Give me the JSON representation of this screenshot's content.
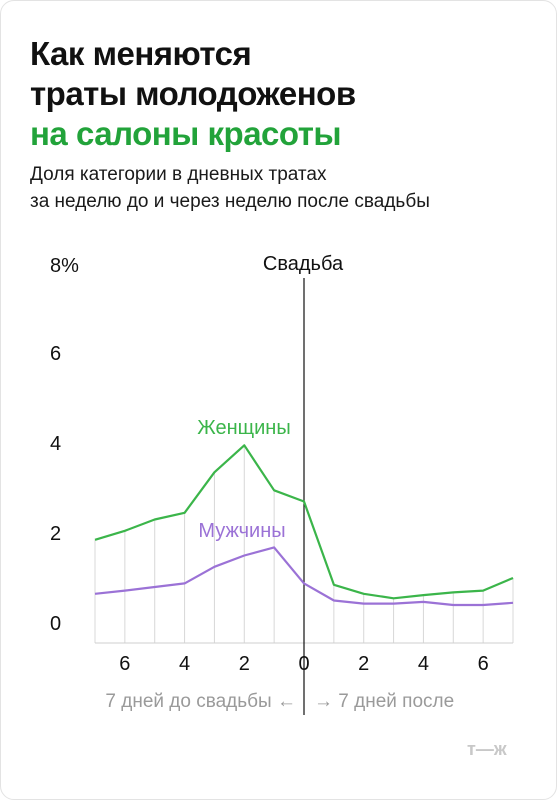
{
  "title": {
    "line1": "Как меняются",
    "line2": "траты молодоженов",
    "line3": "на салоны красоты"
  },
  "subtitle": {
    "line1": "Доля категории в дневных тратах",
    "line2": "за неделю до и через неделю после свадьбы"
  },
  "colors": {
    "women": "#3bb54a",
    "men": "#9b72d6",
    "accent_title": "#22a33a",
    "text": "#111111",
    "muted": "#9a9a9a",
    "grid": "#d8d8d8"
  },
  "chart_data": {
    "type": "line",
    "x": [
      -7,
      -6,
      -5,
      -4,
      -3,
      -2,
      -1,
      0,
      1,
      2,
      3,
      4,
      5,
      6,
      7
    ],
    "series": [
      {
        "name": "Женщины",
        "values": [
          1.85,
          2.05,
          2.3,
          2.45,
          3.35,
          3.95,
          2.95,
          2.7,
          0.85,
          0.65,
          0.55,
          0.62,
          0.68,
          0.72,
          1.0
        ]
      },
      {
        "name": "Мужчины",
        "values": [
          0.65,
          0.72,
          0.8,
          0.88,
          1.25,
          1.5,
          1.68,
          0.88,
          0.5,
          0.43,
          0.43,
          0.47,
          0.4,
          0.4,
          0.45
        ]
      }
    ],
    "xlim": [
      -7,
      7
    ],
    "ylim": [
      0,
      8
    ],
    "yticks": [
      0,
      2,
      4,
      6
    ],
    "ytick_labels": [
      "0",
      "2",
      "4",
      "6"
    ],
    "top_label": "8%",
    "xticks": [
      -6,
      -4,
      -2,
      0,
      2,
      4,
      6
    ],
    "xtick_labels": [
      "6",
      "4",
      "2",
      "0",
      "2",
      "4",
      "6"
    ],
    "marker_label": "Свадьба",
    "axis_note_before": "7 дней до свадьбы ←",
    "axis_note_after": "→ 7 дней после",
    "grid": "vertical"
  },
  "logo_text": "т—ж"
}
